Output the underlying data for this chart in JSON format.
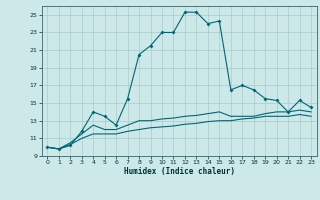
{
  "title": "",
  "xlabel": "Humidex (Indice chaleur)",
  "bg_color": "#cce8e8",
  "grid_color": "#aacccc",
  "line_color": "#006677",
  "xlim": [
    -0.5,
    23.5
  ],
  "ylim": [
    9,
    26
  ],
  "xticks": [
    0,
    1,
    2,
    3,
    4,
    5,
    6,
    7,
    8,
    9,
    10,
    11,
    12,
    13,
    14,
    15,
    16,
    17,
    18,
    19,
    20,
    21,
    22,
    23
  ],
  "yticks": [
    9,
    11,
    13,
    15,
    17,
    19,
    21,
    23,
    25
  ],
  "line1_x": [
    0,
    1,
    2,
    3,
    4,
    5,
    6,
    7,
    8,
    9,
    10,
    11,
    12,
    13,
    14,
    15,
    16,
    17,
    18,
    19,
    20,
    21,
    22,
    23
  ],
  "line1_y": [
    10.0,
    9.8,
    10.2,
    11.8,
    14.0,
    13.5,
    12.5,
    15.5,
    20.5,
    21.5,
    23.0,
    23.0,
    25.3,
    25.3,
    24.0,
    24.3,
    16.5,
    17.0,
    16.5,
    15.5,
    15.3,
    14.0,
    15.3,
    14.5
  ],
  "line2_x": [
    0,
    1,
    2,
    3,
    4,
    5,
    6,
    7,
    8,
    9,
    10,
    11,
    12,
    13,
    14,
    15,
    16,
    17,
    18,
    19,
    20,
    21,
    22,
    23
  ],
  "line2_y": [
    10.0,
    9.8,
    10.5,
    11.5,
    12.5,
    12.0,
    12.0,
    12.5,
    13.0,
    13.0,
    13.2,
    13.3,
    13.5,
    13.6,
    13.8,
    14.0,
    13.5,
    13.5,
    13.5,
    13.8,
    14.0,
    14.0,
    14.2,
    14.0
  ],
  "line3_x": [
    0,
    1,
    2,
    3,
    4,
    5,
    6,
    7,
    8,
    9,
    10,
    11,
    12,
    13,
    14,
    15,
    16,
    17,
    18,
    19,
    20,
    21,
    22,
    23
  ],
  "line3_y": [
    10.0,
    9.8,
    10.3,
    11.0,
    11.5,
    11.5,
    11.5,
    11.8,
    12.0,
    12.2,
    12.3,
    12.4,
    12.6,
    12.7,
    12.9,
    13.0,
    13.0,
    13.2,
    13.3,
    13.5,
    13.5,
    13.5,
    13.7,
    13.5
  ]
}
